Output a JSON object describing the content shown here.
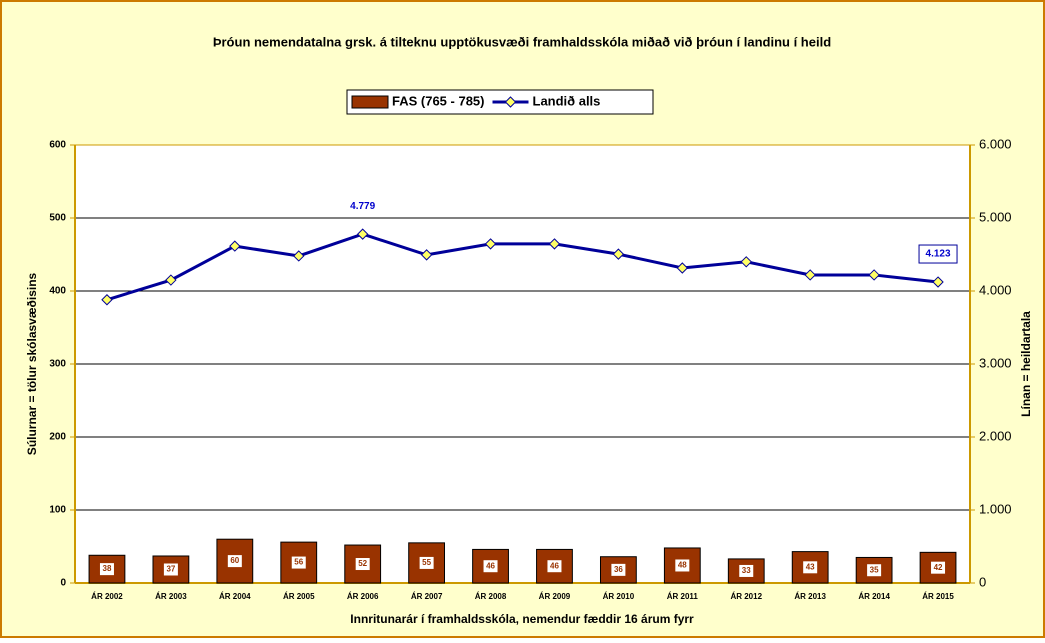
{
  "chart_data": {
    "type": "bar_line",
    "title": "Þróun nemendatalna grsk. á tilteknu upptökusvæði framhaldsskóla miðað við þróun í landinu í heild",
    "ylabel": "Súlurnar = tölur skólasvæðisins",
    "y2label": "Línan = heildartala",
    "xlabel": "Innritunarár í framhaldsskóla, nemendur fæddir 16 árum fyrr",
    "categories": [
      "ÁR 2002",
      "ÁR 2003",
      "ÁR 2004",
      "ÁR 2005",
      "ÁR 2006",
      "ÁR 2007",
      "ÁR 2008",
      "ÁR 2009",
      "ÁR 2010",
      "ÁR 2011",
      "ÁR 2012",
      "ÁR 2013",
      "ÁR 2014",
      "ÁR 2015"
    ],
    "series": [
      {
        "name": "FAS (765 - 785)",
        "type": "bar",
        "color": "#993300",
        "values": [
          38,
          37,
          60,
          56,
          52,
          55,
          46,
          46,
          36,
          48,
          33,
          43,
          35,
          42
        ]
      },
      {
        "name": "Landið alls",
        "type": "line",
        "axis": "y2",
        "color": "#000099",
        "marker_color": "#ffff66",
        "values": [
          3880,
          4150,
          4615,
          4480,
          4779,
          4495,
          4645,
          4645,
          4505,
          4315,
          4400,
          4220,
          4220,
          4123
        ],
        "value_labels": [
          null,
          null,
          null,
          null,
          "4.779",
          null,
          null,
          null,
          null,
          null,
          null,
          null,
          null,
          "4.123"
        ]
      }
    ],
    "ylim": [
      0,
      600
    ],
    "yticks": [
      0,
      100,
      200,
      300,
      400,
      500,
      600
    ],
    "y2lim": [
      0,
      6000
    ],
    "y2ticks": [
      0,
      {
        "value": 1000,
        "label": "1.000"
      },
      {
        "value": 2000,
        "label": "2.000"
      },
      {
        "value": 3000,
        "label": "3.000"
      },
      {
        "value": 4000,
        "label": "4.000"
      },
      {
        "value": 5000,
        "label": "5.000"
      },
      {
        "value": 6000,
        "label": "6.000"
      }
    ],
    "grid": true,
    "legend": "top"
  }
}
